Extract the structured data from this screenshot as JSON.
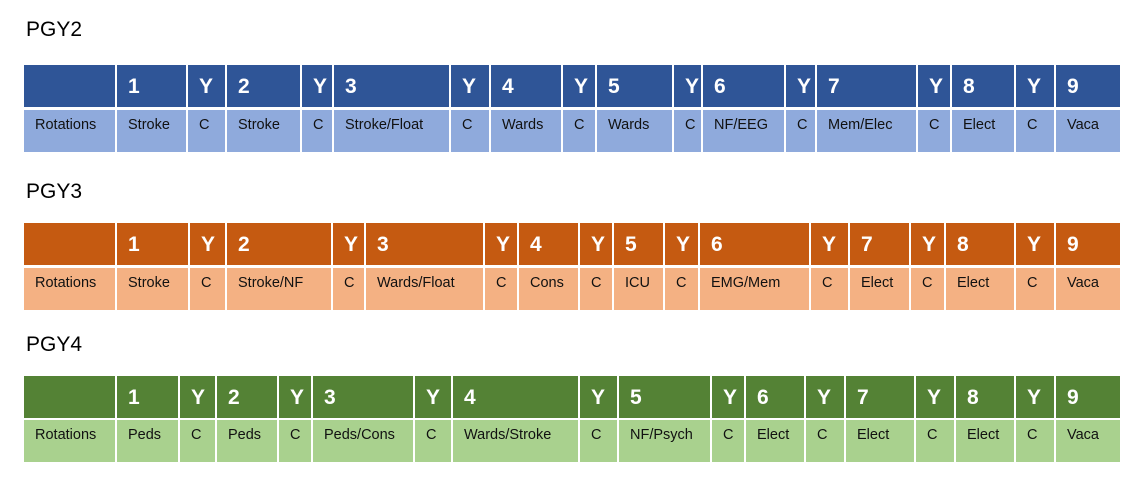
{
  "tables": [
    {
      "title": "PGY2",
      "header_color": "#2F5597",
      "row_color": "#8FAADC",
      "header": [
        "",
        "1",
        "Y",
        "2",
        "Y",
        "3",
        "Y",
        "4",
        "Y",
        "5",
        "Y",
        "6",
        "Y",
        "7",
        "Y",
        "8",
        "Y",
        "9"
      ],
      "rotations": [
        "Rotations",
        "Stroke",
        "C",
        "Stroke",
        "C",
        "Stroke/Float",
        "C",
        "Wards",
        "C",
        "Wards",
        "C",
        "NF/EEG",
        "C",
        "Mem/Elec",
        "C",
        "Elect",
        "C",
        "Vaca"
      ]
    },
    {
      "title": "PGY3",
      "header_color": "#C55A11",
      "row_color": "#F4B183",
      "header": [
        "",
        "1",
        "Y",
        "2",
        "Y",
        "3",
        "Y",
        "4",
        "Y",
        "5",
        "Y",
        "6",
        "Y",
        "7",
        "Y",
        "8",
        "Y",
        "9"
      ],
      "rotations": [
        "Rotations",
        "Stroke",
        "C",
        "Stroke/NF",
        "C",
        "Wards/Float",
        "C",
        "Cons",
        "C",
        "ICU",
        "C",
        "EMG/Mem",
        "C",
        "Elect",
        "C",
        "Elect",
        "C",
        "Vaca"
      ]
    },
    {
      "title": "PGY4",
      "header_color": "#548235",
      "row_color": "#A9D18E",
      "header": [
        "",
        "1",
        "Y",
        "2",
        "Y",
        "3",
        "Y",
        "4",
        "Y",
        "5",
        "Y",
        "6",
        "Y",
        "7",
        "Y",
        "8",
        "Y",
        "9"
      ],
      "rotations": [
        "Rotations",
        "Peds",
        "C",
        "Peds",
        "C",
        "Peds/Cons",
        "C",
        "Wards/Stroke",
        "C",
        "NF/Psych",
        "C",
        "Elect",
        "C",
        "Elect",
        "C",
        "Elect",
        "C",
        "Vaca"
      ]
    }
  ]
}
